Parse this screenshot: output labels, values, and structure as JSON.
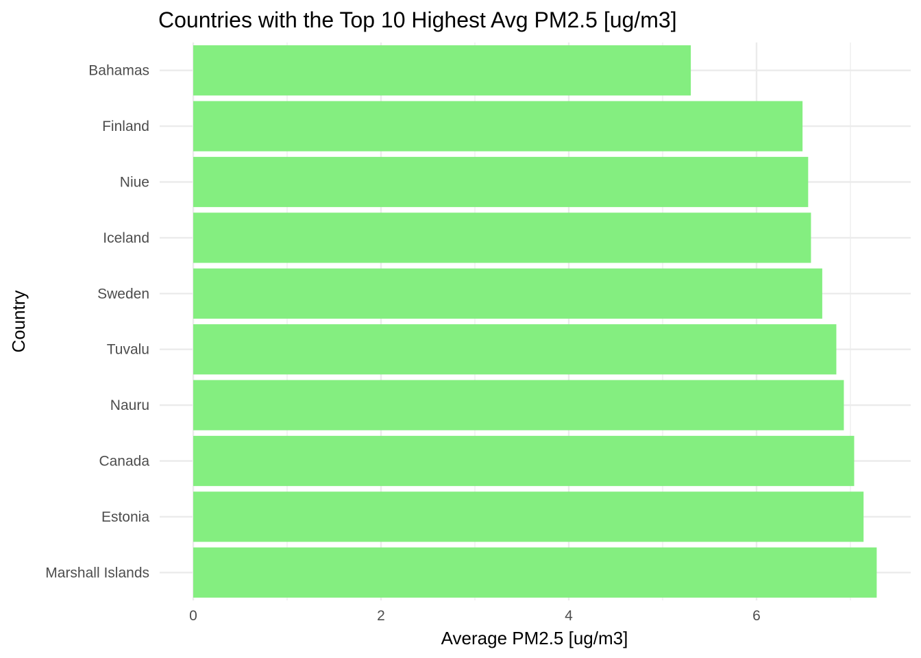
{
  "chart_data": {
    "type": "bar",
    "orientation": "horizontal",
    "title": "Countries with the Top 10 Highest Avg PM2.5 [ug/m3]",
    "xlabel": "Average PM2.5 [ug/m3]",
    "ylabel": "Country",
    "categories": [
      "Bahamas",
      "Finland",
      "Niue",
      "Iceland",
      "Sweden",
      "Tuvalu",
      "Nauru",
      "Canada",
      "Estonia",
      "Marshall Islands"
    ],
    "values": [
      5.3,
      6.49,
      6.55,
      6.58,
      6.7,
      6.85,
      6.93,
      7.04,
      7.14,
      7.28
    ],
    "x_ticks": [
      0,
      2,
      4,
      6
    ],
    "x_tick_labels": [
      "0",
      "2",
      "4",
      "6"
    ],
    "xlim": [
      0,
      7.64
    ],
    "grid": true,
    "bar_color": "#84ee80",
    "grid_color": "#ebebeb",
    "legend": "none"
  }
}
